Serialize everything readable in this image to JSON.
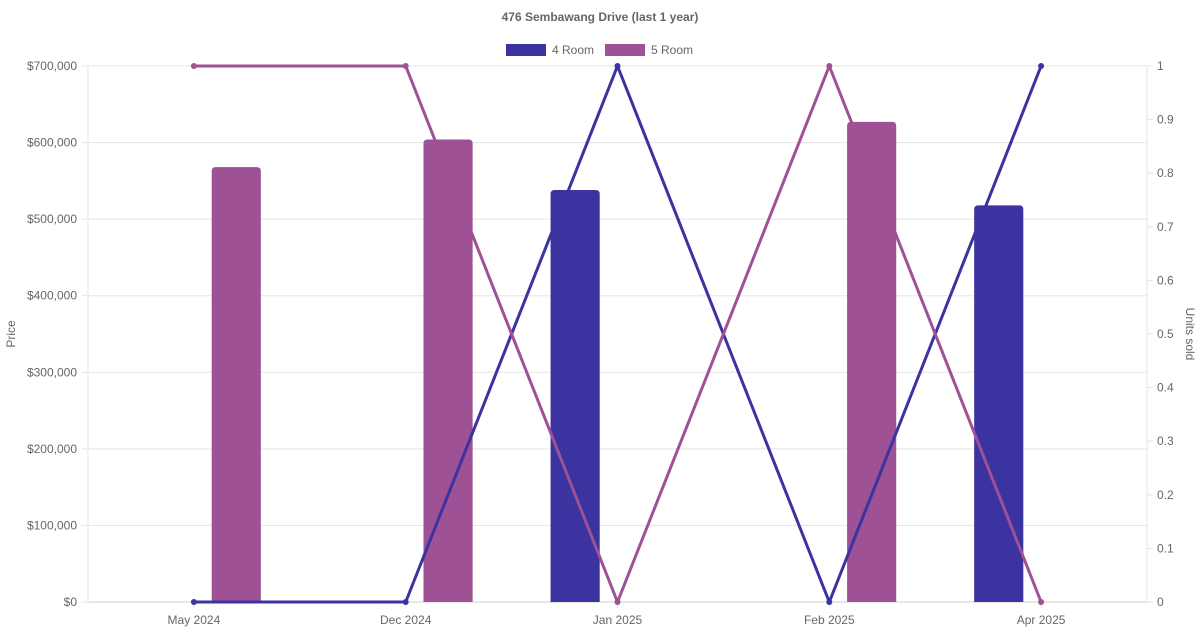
{
  "chart_data": {
    "type": "bar",
    "title": "476 Sembawang Drive (last 1 year)",
    "categories": [
      "May 2024",
      "Dec 2024",
      "Jan 2025",
      "Feb 2025",
      "Apr 2025"
    ],
    "y_left": {
      "label": "Price",
      "range": [
        0,
        700000
      ],
      "ticks": [
        "$0",
        "$100,000",
        "$200,000",
        "$300,000",
        "$400,000",
        "$500,000",
        "$600,000",
        "$700,000"
      ]
    },
    "y_right": {
      "label": "Units sold",
      "range": [
        0,
        1
      ],
      "ticks": [
        "0",
        "0.1",
        "0.2",
        "0.3",
        "0.4",
        "0.5",
        "0.6",
        "0.7",
        "0.8",
        "0.9",
        "1"
      ]
    },
    "grid": true,
    "legend_position": "top",
    "series": [
      {
        "name": "4 Room",
        "color": "#3A33A0",
        "price": [
          null,
          null,
          538000,
          null,
          518000
        ],
        "units_sold": [
          0,
          0,
          1,
          0,
          1
        ]
      },
      {
        "name": "5 Room",
        "color": "#9E5195",
        "price": [
          568000,
          604000,
          null,
          627000,
          null
        ],
        "units_sold": [
          1,
          1,
          0,
          1,
          0
        ]
      }
    ]
  }
}
